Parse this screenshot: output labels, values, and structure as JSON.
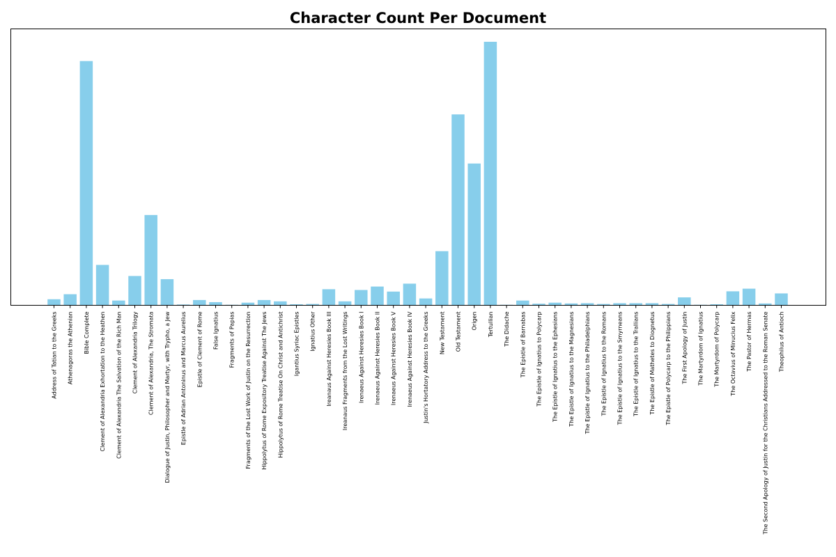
{
  "chart_data": {
    "type": "bar",
    "title": "Character Count Per Document",
    "xlabel": "",
    "ylabel": "",
    "ylim": [
      0,
      1000
    ],
    "grid": false,
    "color": "#87ceeb",
    "categories": [
      "Address of Tatian to the Greeks",
      "Athenagoras the Athenian",
      "Bible Complete",
      "Clement of Alexandria Exhortation to the Heathen",
      "Clement of Alexandria The Salvation of the Rich Man",
      "Clement of Alexandria Trilogy",
      "Clement of Alexandria, The Stromata",
      "Dialogue of Justin, Philosopher and Martyr, with Trypho, a Jew",
      "Epistle of Adrian Antoninus and Marcus Aurelius",
      "Epistle of Clement of Rome",
      "False Ignatius",
      "Fragments of Papias",
      "Fragments of the Lost Work of Justin on the Resurrection",
      "Hippolytus of Rome Expository Treatise Against The Jews",
      "Hippolytus of Rome Treatise On Christ and Antichrist",
      "Igantius Syriac Epistles",
      "Ignatius Other",
      "Ireanaus Against Heresies Book III",
      "Ireanaus Fragments from the Lost Writings",
      "Irenaeus Against Heresies Book I",
      "Irenaeus Against Heresies Book II",
      "Irenaeus Against Heresies Book V",
      "Irenaeus Against Heresies Book IV",
      "Justin's Hortatory Address to the Greeks",
      "New Testament",
      "Old Testament",
      "Origen",
      "Tertullian",
      "The Didache",
      "The Epistle of Barnabas",
      "The Epistle of Ignatius to Polycarp",
      "The Epistle of Ignatius to the Ephesians",
      "The Epistle of Ignatius to the Magnesians",
      "The Epistle of Ignatius to the Philadelphians",
      "The Epistle of Ignatius to the Romans",
      "The Epistle of Ignatius to the Smyrneans",
      "The Epistle of Ignatius to the Trallians",
      "The Epistle of Mathetes to Diognetus",
      "The Epistle of Polycarp to the Philippians",
      "The First Apology of Justin",
      "The Martyrdom of Ignatius",
      "The Martyrdom of Polycarp",
      "The Octavius of Minucius Felix",
      "The Pastor of Hermas",
      "The Second Apology of Justin for the Christians Addressed to the Roman Senate",
      "Theophilus of Antioch"
    ],
    "values": [
      23,
      42,
      925,
      153,
      18,
      111,
      342,
      99,
      3,
      20,
      12,
      2,
      10,
      20,
      15,
      4,
      5,
      61,
      15,
      58,
      71,
      52,
      82,
      26,
      205,
      723,
      537,
      998,
      2,
      18,
      6,
      10,
      7,
      8,
      5,
      8,
      8,
      8,
      5,
      30,
      2,
      4,
      53,
      63,
      7,
      45
    ]
  }
}
